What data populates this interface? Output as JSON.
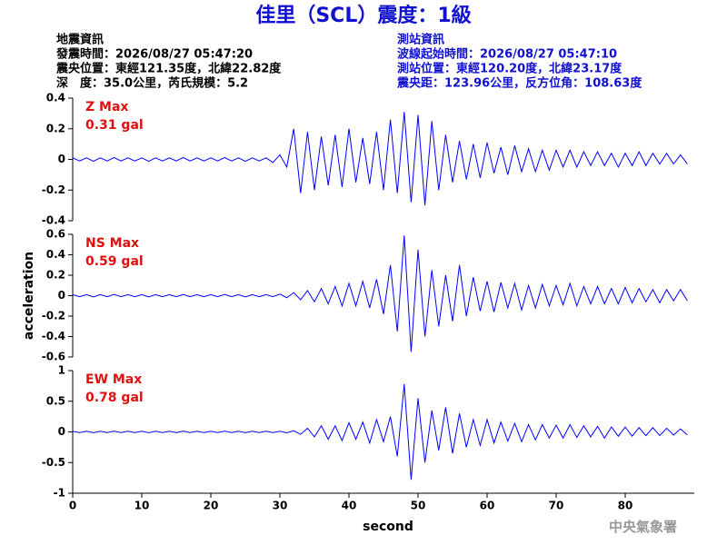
{
  "header": {
    "title": "佳里（SCL）震度：1級",
    "left": [
      "地震資訊",
      "發震時間：2026/08/27 05:47:20",
      "震央位置：東經121.35度，北緯22.82度",
      "深　度：35.0公里，芮氏規模：5.2"
    ],
    "right": [
      "測站資訊",
      "波線起始時間：2026/08/27 05:47:10",
      "測站位置：東經120.20度，北緯23.17度",
      "震央距：123.96公里，反方位角：108.63度"
    ]
  },
  "footer": "中央氣象署",
  "chart_data": [
    {
      "type": "line",
      "annotations": [
        "Z Max",
        "0.31 gal"
      ],
      "color": "#0000ff",
      "ylim": [
        -0.4,
        0.4
      ],
      "yticks": [
        0.4,
        0.2,
        0,
        -0.2,
        -0.4
      ],
      "xlim": [
        0,
        90
      ],
      "x": [
        0,
        1,
        2,
        3,
        4,
        5,
        6,
        7,
        8,
        9,
        10,
        11,
        12,
        13,
        14,
        15,
        16,
        17,
        18,
        19,
        20,
        21,
        22,
        23,
        24,
        25,
        26,
        27,
        28,
        29,
        30,
        31,
        32,
        33,
        34,
        35,
        36,
        37,
        38,
        39,
        40,
        41,
        42,
        43,
        44,
        45,
        46,
        47,
        48,
        49,
        50,
        51,
        52,
        53,
        54,
        55,
        56,
        57,
        58,
        59,
        60,
        61,
        62,
        63,
        64,
        65,
        66,
        67,
        68,
        69,
        70,
        71,
        72,
        73,
        74,
        75,
        76,
        77,
        78,
        79,
        80,
        81,
        82,
        83,
        84,
        85,
        86,
        87,
        88,
        89
      ],
      "values": [
        0.01,
        -0.01,
        0.01,
        -0.012,
        0.01,
        -0.01,
        0.012,
        -0.01,
        0.01,
        -0.01,
        0.01,
        -0.012,
        0.01,
        -0.01,
        0.01,
        -0.01,
        0.012,
        -0.01,
        0.01,
        -0.01,
        0.01,
        -0.01,
        0.012,
        -0.01,
        0.01,
        -0.012,
        0.01,
        -0.01,
        0.01,
        -0.02,
        0.03,
        -0.05,
        0.2,
        -0.22,
        0.18,
        -0.2,
        0.15,
        -0.17,
        0.16,
        -0.18,
        0.2,
        -0.15,
        0.14,
        -0.16,
        0.18,
        -0.2,
        0.26,
        -0.22,
        0.31,
        -0.28,
        0.29,
        -0.3,
        0.25,
        -0.2,
        0.16,
        -0.15,
        0.12,
        -0.13,
        0.1,
        -0.12,
        0.11,
        -0.09,
        0.08,
        -0.1,
        0.09,
        -0.08,
        0.07,
        -0.08,
        0.06,
        -0.07,
        0.06,
        -0.05,
        0.06,
        -0.05,
        0.05,
        -0.04,
        0.05,
        -0.04,
        0.04,
        -0.05,
        0.04,
        -0.04,
        0.05,
        -0.04,
        0.04,
        -0.03,
        0.04,
        -0.03,
        0.03,
        -0.03
      ]
    },
    {
      "type": "line",
      "annotations": [
        "NS Max",
        "0.59 gal"
      ],
      "ylabel": "acceleration",
      "color": "#0000ff",
      "ylim": [
        -0.6,
        0.6
      ],
      "yticks": [
        0.6,
        0.4,
        0.2,
        0,
        -0.2,
        -0.4,
        -0.6
      ],
      "xlim": [
        0,
        90
      ],
      "x": [
        0,
        1,
        2,
        3,
        4,
        5,
        6,
        7,
        8,
        9,
        10,
        11,
        12,
        13,
        14,
        15,
        16,
        17,
        18,
        19,
        20,
        21,
        22,
        23,
        24,
        25,
        26,
        27,
        28,
        29,
        30,
        31,
        32,
        33,
        34,
        35,
        36,
        37,
        38,
        39,
        40,
        41,
        42,
        43,
        44,
        45,
        46,
        47,
        48,
        49,
        50,
        51,
        52,
        53,
        54,
        55,
        56,
        57,
        58,
        59,
        60,
        61,
        62,
        63,
        64,
        65,
        66,
        67,
        68,
        69,
        70,
        71,
        72,
        73,
        74,
        75,
        76,
        77,
        78,
        79,
        80,
        81,
        82,
        83,
        84,
        85,
        86,
        87,
        88,
        89
      ],
      "values": [
        0.01,
        -0.01,
        0.01,
        -0.012,
        0.01,
        -0.01,
        0.012,
        -0.01,
        0.01,
        -0.01,
        0.01,
        -0.012,
        0.01,
        -0.01,
        0.01,
        -0.01,
        0.012,
        -0.01,
        0.01,
        -0.01,
        0.01,
        -0.01,
        0.012,
        -0.01,
        0.01,
        -0.012,
        0.01,
        -0.01,
        0.01,
        -0.01,
        0.015,
        -0.02,
        0.03,
        -0.04,
        0.05,
        -0.06,
        0.07,
        -0.08,
        0.09,
        -0.1,
        0.12,
        -0.1,
        0.14,
        -0.12,
        0.16,
        -0.18,
        0.3,
        -0.35,
        0.59,
        -0.55,
        0.45,
        -0.4,
        0.25,
        -0.3,
        0.2,
        -0.25,
        0.3,
        -0.2,
        0.18,
        -0.15,
        0.14,
        -0.16,
        0.13,
        -0.12,
        0.12,
        -0.14,
        0.1,
        -0.12,
        0.11,
        -0.1,
        0.1,
        -0.09,
        0.12,
        -0.1,
        0.09,
        -0.08,
        0.09,
        -0.08,
        0.07,
        -0.08,
        0.08,
        -0.07,
        0.07,
        -0.06,
        0.06,
        -0.07,
        0.06,
        -0.05,
        0.06,
        -0.05
      ]
    },
    {
      "type": "line",
      "annotations": [
        "EW Max",
        "0.78 gal"
      ],
      "xlabel": "second",
      "color": "#0000ff",
      "ylim": [
        -1,
        1
      ],
      "yticks": [
        1,
        0.5,
        0,
        -0.5,
        -1
      ],
      "xlim": [
        0,
        90
      ],
      "xticks": [
        0,
        10,
        20,
        30,
        40,
        50,
        60,
        70,
        80
      ],
      "x": [
        0,
        1,
        2,
        3,
        4,
        5,
        6,
        7,
        8,
        9,
        10,
        11,
        12,
        13,
        14,
        15,
        16,
        17,
        18,
        19,
        20,
        21,
        22,
        23,
        24,
        25,
        26,
        27,
        28,
        29,
        30,
        31,
        32,
        33,
        34,
        35,
        36,
        37,
        38,
        39,
        40,
        41,
        42,
        43,
        44,
        45,
        46,
        47,
        48,
        49,
        50,
        51,
        52,
        53,
        54,
        55,
        56,
        57,
        58,
        59,
        60,
        61,
        62,
        63,
        64,
        65,
        66,
        67,
        68,
        69,
        70,
        71,
        72,
        73,
        74,
        75,
        76,
        77,
        78,
        79,
        80,
        81,
        82,
        83,
        84,
        85,
        86,
        87,
        88,
        89
      ],
      "values": [
        0.01,
        -0.01,
        0.01,
        -0.012,
        0.01,
        -0.01,
        0.012,
        -0.01,
        0.01,
        -0.01,
        0.01,
        -0.012,
        0.01,
        -0.01,
        0.01,
        -0.01,
        0.012,
        -0.01,
        0.01,
        -0.01,
        0.01,
        -0.01,
        0.012,
        -0.01,
        0.01,
        -0.012,
        0.01,
        -0.01,
        0.01,
        -0.01,
        0.01,
        -0.015,
        0.02,
        -0.04,
        0.06,
        -0.08,
        0.1,
        -0.12,
        0.1,
        -0.14,
        0.15,
        -0.12,
        0.16,
        -0.18,
        0.2,
        -0.16,
        0.25,
        -0.4,
        0.78,
        -0.78,
        0.55,
        -0.5,
        0.35,
        -0.3,
        0.4,
        -0.35,
        0.3,
        -0.25,
        0.2,
        -0.22,
        0.2,
        -0.18,
        0.16,
        -0.15,
        0.14,
        -0.16,
        0.12,
        -0.13,
        0.12,
        -0.1,
        0.11,
        -0.1,
        0.12,
        -0.09,
        0.1,
        -0.08,
        0.09,
        -0.1,
        0.08,
        -0.07,
        0.08,
        -0.07,
        0.07,
        -0.06,
        0.07,
        -0.06,
        0.06,
        -0.05,
        0.05,
        -0.05
      ]
    }
  ]
}
